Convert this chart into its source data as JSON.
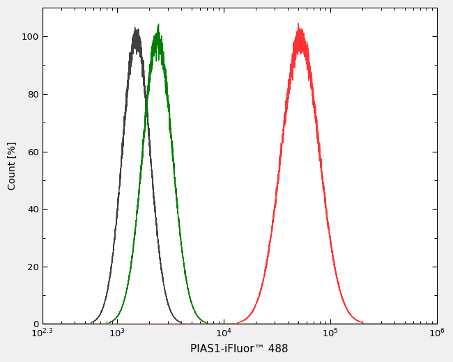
{
  "title": "",
  "xlabel": "PIAS1-iFluor™ 488",
  "ylabel": "Count [%]",
  "xlim_log": [
    2.3,
    6
  ],
  "ylim": [
    0,
    110
  ],
  "yticks": [
    0,
    20,
    40,
    60,
    80,
    100
  ],
  "background_color": "#f0f0f0",
  "plot_bg_color": "#ffffff",
  "curves": [
    {
      "color": "#404040",
      "peak_log": 3.18,
      "peak_y": 100,
      "sigma": 0.13,
      "noise_seed": 42,
      "label": "black"
    },
    {
      "color": "#008000",
      "peak_log": 3.38,
      "peak_y": 99,
      "sigma": 0.14,
      "noise_seed": 7,
      "label": "green"
    },
    {
      "color": "#ff3333",
      "peak_log": 4.72,
      "peak_y": 99,
      "sigma": 0.18,
      "noise_seed": 13,
      "label": "red"
    }
  ],
  "figsize": [
    6.5,
    5.2
  ],
  "dpi": 100
}
